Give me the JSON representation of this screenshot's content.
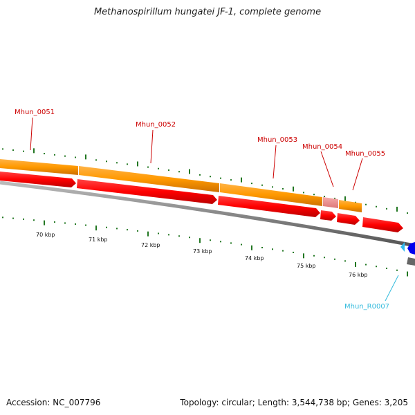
{
  "title": "Methanospirillum hungatei JF-1, complete genome",
  "footer": {
    "accession": "Accession: NC_007796",
    "summary": "Topology: circular; Length: 3,544,738 bp; Genes: 3,205"
  },
  "genes": [
    {
      "label": "Mhun_0051",
      "color": "#cc0000"
    },
    {
      "label": "Mhun_0052",
      "color": "#cc0000"
    },
    {
      "label": "Mhun_0053",
      "color": "#cc0000"
    },
    {
      "label": "Mhun_0054",
      "color": "#cc0000"
    },
    {
      "label": "Mhun_0055",
      "color": "#cc0000"
    },
    {
      "label": "Mhun_R0007",
      "color": "#33bbdd"
    }
  ],
  "scale_labels": [
    "70 kbp",
    "71 kbp",
    "72 kbp",
    "73 kbp",
    "74 kbp",
    "75 kbp",
    "76 kbp"
  ],
  "colors": {
    "cds": "#ff0000",
    "gene_band": "#ff9900",
    "gene_band_highlight": "#ee8888",
    "backbone": "#888888",
    "ticks": "#227722",
    "rna": "#33bbee",
    "rna_dark": "#0000ee"
  }
}
